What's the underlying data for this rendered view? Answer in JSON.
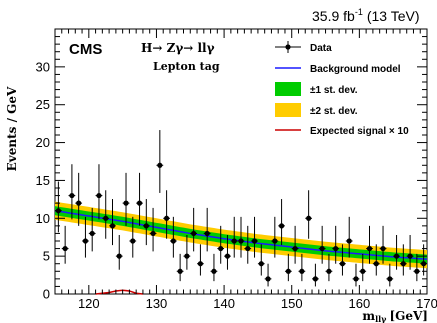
{
  "header": {
    "lumi": "35.9 fb",
    "lumi_exp": "-1",
    "energy": "(13 TeV)"
  },
  "experiment": "CMS",
  "process": "H→ Zγ→ llγ",
  "category": "Lepton tag",
  "legend": [
    {
      "label": "Data",
      "kind": "marker",
      "color": "#000000"
    },
    {
      "label": "Background model",
      "kind": "line",
      "color": "#1a1aff"
    },
    {
      "label": "±1 st. dev.",
      "kind": "box",
      "color": "#00cc00"
    },
    {
      "label": "±2 st. dev.",
      "kind": "box",
      "color": "#ffcc00"
    },
    {
      "label": "Expected signal × 10",
      "kind": "line",
      "color": "#cc0000"
    }
  ],
  "chart_data": {
    "type": "scatter",
    "xlabel": "m_llγ [GeV]",
    "xlabel_main": "m",
    "xlabel_sub": "llγ",
    "xlabel_unit": "[GeV]",
    "ylabel": "Events / GeV",
    "xlim": [
      115,
      170
    ],
    "ylim": [
      0,
      35
    ],
    "xticks": [
      120,
      130,
      140,
      150,
      160,
      170
    ],
    "yticks": [
      0,
      5,
      10,
      15,
      20,
      25,
      30
    ],
    "data": {
      "x": [
        115.5,
        116.5,
        117.5,
        118.5,
        119.5,
        120.5,
        121.5,
        122.5,
        123.5,
        124.5,
        125.5,
        126.5,
        127.5,
        128.5,
        129.5,
        130.5,
        131.5,
        132.5,
        133.5,
        134.5,
        135.5,
        136.5,
        137.5,
        138.5,
        139.5,
        140.5,
        141.5,
        142.5,
        143.5,
        144.5,
        145.5,
        146.5,
        147.5,
        148.5,
        149.5,
        150.5,
        151.5,
        152.5,
        153.5,
        154.5,
        155.5,
        156.5,
        157.5,
        158.5,
        159.5,
        160.5,
        161.5,
        162.5,
        163.5,
        164.5,
        165.5,
        166.5,
        167.5,
        168.5,
        169.5
      ],
      "y": [
        11,
        6,
        13,
        12,
        7,
        8,
        13,
        10,
        9,
        5,
        12,
        7,
        12,
        9,
        8,
        17,
        10,
        7,
        3,
        5,
        8,
        4,
        8,
        3,
        6,
        5,
        7,
        7,
        6,
        7,
        4,
        2,
        7,
        9,
        3,
        6,
        3,
        10,
        2,
        6,
        3,
        6,
        4,
        7,
        2,
        3,
        6,
        4,
        6,
        2,
        5,
        4,
        5,
        3,
        4
      ]
    },
    "background_model": {
      "x": [
        115,
        120,
        125,
        130,
        135,
        140,
        145,
        150,
        155,
        160,
        165,
        170
      ],
      "y": [
        11.0,
        10.3,
        9.6,
        8.8,
        8.0,
        7.3,
        6.7,
        6.2,
        5.7,
        5.3,
        4.9,
        4.6
      ]
    },
    "band_1sigma": 0.6,
    "band_2sigma": 1.2,
    "expected_signal_x10": {
      "x": [
        121,
        122,
        123,
        124,
        125,
        126,
        127,
        128
      ],
      "y": [
        0,
        0.1,
        0.2,
        0.4,
        0.5,
        0.4,
        0.1,
        0
      ]
    }
  }
}
